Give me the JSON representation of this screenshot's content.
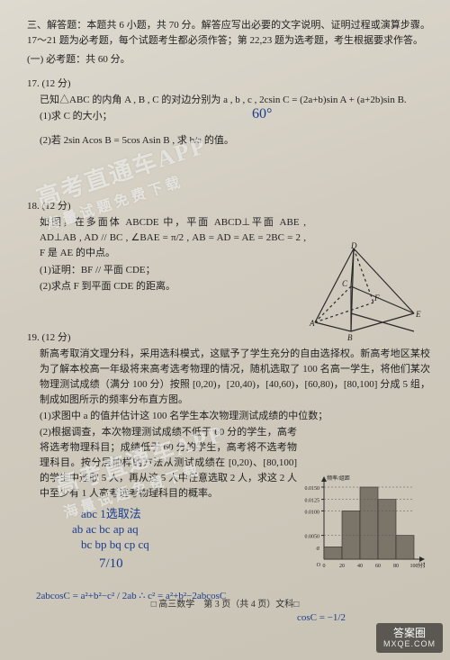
{
  "section3": {
    "head": "三、解答题：本题共 6 小题，共 70 分。解答应写出必要的文字说明、证明过程或演算步骤。17～21 题为必考题，每个试题考生都必须作答；第 22,23 题为选考题，考生根据要求作答。",
    "subhead": "(一) 必考题：共 60 分。"
  },
  "q17": {
    "num": "17. (12 分)",
    "stem": "已知△ABC 的内角 A , B , C 的对边分别为 a , b , c , 2csin C = (2a+b)sin A + (a+2b)sin B.",
    "p1": "(1)求 C 的大小；",
    "p2": "(2)若 2sin Acos B = 5cos Asin B , 求 b/a 的值。"
  },
  "q18": {
    "num": "18. (12 分)",
    "stem": "如图，在多面体 ABCDE 中，平面 ABCD⊥平面 ABE , AD⊥AB , AD // BC , ∠BAE = π/2 , AB = AD = AE = 2BC = 2 , F 是 AE 的中点。",
    "p1": "(1)证明：BF // 平面 CDE；",
    "p2": "(2)求点 F 到平面 CDE 的距离。",
    "fig": {
      "labels": [
        "A",
        "B",
        "C",
        "D",
        "E",
        "F"
      ],
      "stroke": "#2a2a2a"
    }
  },
  "q19": {
    "num": "19. (12 分)",
    "stem": "新高考取消文理分科，采用选科模式，这赋予了学生充分的自由选择权。新高考地区某校为了解本校高一年级将来高考选考物理的情况，随机选取了 100 名高一学生，将他们某次物理测试成绩（满分 100 分）按照 [0,20)，[20,40)，[40,60)，[60,80)，[80,100] 分成 5 组，制成如图所示的频率分布直方图。",
    "p1": "(1)求图中 a 的值并估计这 100 名学生本次物理测试成绩的中位数；",
    "p2": "(2)根据调查，本次物理测试成绩不低于 60 分的学生，高考将选考物理科目；成绩低于 60 分的学生，高考将不选考物理科目。按分层抽样的方法从测试成绩在 [0,20)、[80,100] 的学生中选取 5 人，再从这 5 人中任意选取 2 人，求这 2 人中至少有 1 人高考选考物理科目的概率。"
  },
  "histogram": {
    "x_ticks": [
      "0",
      "20",
      "40",
      "60",
      "80",
      "100"
    ],
    "x_label": "分数/分",
    "y_label": "频率/组距",
    "y_ticks": [
      "0.0050",
      "0.0100",
      "0.0125",
      "0.0150"
    ],
    "a_label": "a",
    "bar_heights_rel": [
      0.17,
      0.67,
      1.0,
      0.83,
      0.33
    ],
    "bar_color": "#7b7468",
    "axis_color": "#2a2a2a",
    "grid_color": "#555"
  },
  "handwriting": {
    "h1": "60°",
    "h2": "abc 1选取法",
    "h3": "ab ac bc ap aq",
    "h4": "bc bp bq cp cq",
    "h5": "7/10",
    "h6": "2abcosC = a²+b²−c² / 2ab  ∴ c² = a²+b²−2abcosC",
    "h7": "cosC = −1/2"
  },
  "watermarks": {
    "wm1_main": "高考直通车APP",
    "wm1_sub": "海量试题免费下载",
    "wm2_main": "高考直通车APP",
    "wm2_sub": "海量试题免费下载"
  },
  "footer": "□ 高三数学　第 3 页（共 4 页）文科□",
  "brand": {
    "main": "答案圈",
    "sub": "MXQE.COM"
  }
}
